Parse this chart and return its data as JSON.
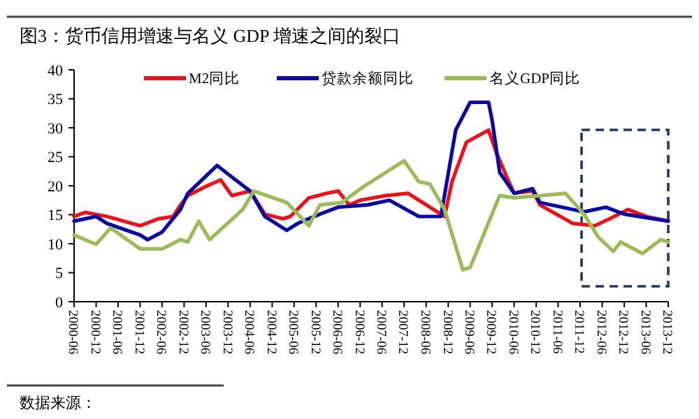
{
  "chart_data": {
    "type": "line",
    "title": "图3：货币信用增速与名义 GDP 增速之间的裂口",
    "xlim": [
      "2000-06",
      "2013-12"
    ],
    "xticks": [
      "2000-06",
      "2000-12",
      "2001-06",
      "2001-12",
      "2002-06",
      "2002-12",
      "2003-06",
      "2003-12",
      "2004-06",
      "2004-12",
      "2005-06",
      "2005-12",
      "2006-06",
      "2006-12",
      "2007-06",
      "2007-12",
      "2008-06",
      "2008-12",
      "2009-06",
      "2009-12",
      "2010-06",
      "2010-12",
      "2011-06",
      "2011-12",
      "2012-06",
      "2012-12",
      "2013-06",
      "2013-12"
    ],
    "ylim": [
      0,
      40
    ],
    "yticks": [
      0,
      5,
      10,
      15,
      20,
      25,
      30,
      35,
      40
    ],
    "legend": "top",
    "grid": false,
    "marker": "none",
    "line_style": "solid",
    "annotations": [
      "数据来源："
    ],
    "series": [
      {
        "name": "M2同比",
        "color": "#e8141c",
        "x": [
          "2000-06",
          "2000-09",
          "2001-03",
          "2001-12",
          "2002-05",
          "2002-09",
          "2002-11",
          "2003-01",
          "2003-06",
          "2003-10",
          "2004-01",
          "2004-06",
          "2004-10",
          "2005-03",
          "2005-05",
          "2005-10",
          "2006-03",
          "2006-06",
          "2006-09",
          "2006-12",
          "2007-07",
          "2008-01",
          "2008-08",
          "2008-11",
          "2009-01",
          "2009-05",
          "2009-11",
          "2010-01",
          "2010-04",
          "2010-06",
          "2010-11",
          "2011-01",
          "2011-10",
          "2012-04",
          "2012-08",
          "2013-01",
          "2013-06",
          "2013-12"
        ],
        "values": [
          14.7,
          15.4,
          14.7,
          13.1,
          14.3,
          14.7,
          16.7,
          18.3,
          19.9,
          21.0,
          18.3,
          19.1,
          15.1,
          14.3,
          14.7,
          17.9,
          18.7,
          19.1,
          16.7,
          17.5,
          18.3,
          18.7,
          15.9,
          14.7,
          20.7,
          27.5,
          29.6,
          25.9,
          21.5,
          18.7,
          19.1,
          16.7,
          13.5,
          13.1,
          14.3,
          15.9,
          14.7,
          13.9
        ]
      },
      {
        "name": "贷款余额同比",
        "color": "#0a0aa0",
        "x": [
          "2000-06",
          "2000-12",
          "2001-03",
          "2001-12",
          "2002-02",
          "2002-06",
          "2002-11",
          "2003-01",
          "2003-09",
          "2004-01",
          "2004-06",
          "2004-10",
          "2004-12",
          "2005-04",
          "2005-07",
          "2006-01",
          "2006-06",
          "2007-02",
          "2007-08",
          "2008-04",
          "2008-10",
          "2009-02",
          "2009-06",
          "2009-11",
          "2009-12",
          "2010-02",
          "2010-06",
          "2010-11",
          "2011-01",
          "2011-10",
          "2012-01",
          "2012-07",
          "2012-12",
          "2013-12"
        ],
        "values": [
          13.9,
          14.7,
          13.5,
          11.5,
          10.7,
          12.0,
          15.9,
          18.7,
          23.5,
          21.5,
          19.1,
          14.7,
          13.9,
          12.3,
          13.5,
          15.1,
          16.3,
          16.7,
          17.5,
          14.7,
          14.7,
          29.6,
          34.4,
          34.4,
          31.2,
          22.3,
          18.7,
          19.5,
          17.1,
          15.9,
          15.5,
          16.3,
          15.1,
          13.9
        ]
      },
      {
        "name": "名义GDP同比",
        "color": "#9bbb59",
        "x": [
          "2000-06",
          "2000-12",
          "2001-04",
          "2001-12",
          "2002-06",
          "2002-11",
          "2003-01",
          "2003-04",
          "2003-07",
          "2004-04",
          "2004-07",
          "2005-04",
          "2005-10",
          "2006-01",
          "2006-07",
          "2007-01",
          "2007-12",
          "2008-04",
          "2008-07",
          "2008-11",
          "2009-04",
          "2009-06",
          "2010-02",
          "2010-06",
          "2011-08",
          "2012-01",
          "2012-05",
          "2012-09",
          "2012-11",
          "2013-05",
          "2013-10",
          "2013-12"
        ],
        "values": [
          11.5,
          9.9,
          12.7,
          9.1,
          9.1,
          10.7,
          10.3,
          13.9,
          10.7,
          15.9,
          19.1,
          17.1,
          13.1,
          16.7,
          17.1,
          19.9,
          24.3,
          20.7,
          20.3,
          15.9,
          5.5,
          5.9,
          18.3,
          17.9,
          18.7,
          15.1,
          11.1,
          8.7,
          10.3,
          8.3,
          10.7,
          10.3
        ]
      }
    ]
  }
}
